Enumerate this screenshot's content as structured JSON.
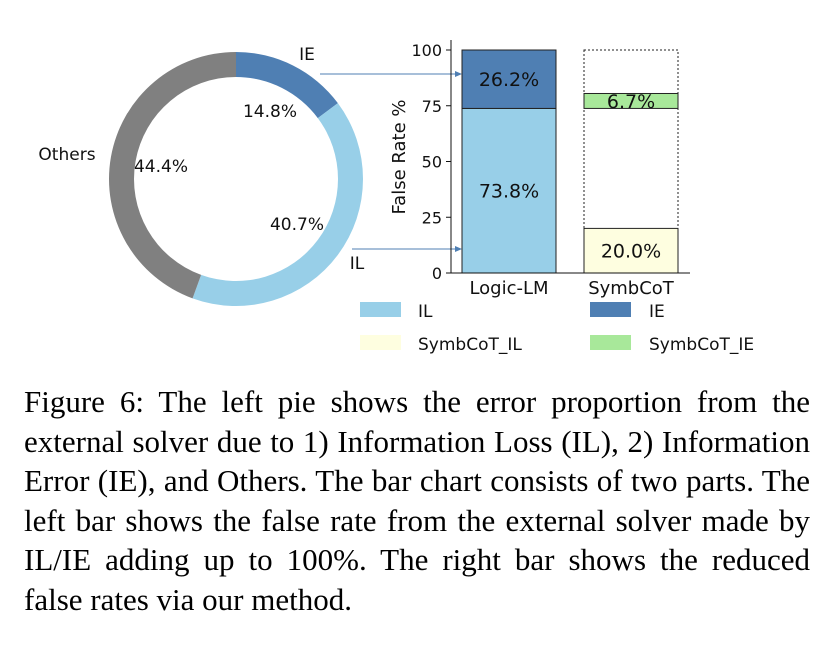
{
  "chart_data": [
    {
      "type": "pie",
      "donut": true,
      "slices": [
        {
          "name": "IE",
          "label": "IE",
          "value": 14.8,
          "pct_label": "14.8%",
          "color": "#4f7fb3"
        },
        {
          "name": "IL",
          "label": "IL",
          "value": 40.7,
          "pct_label": "40.7%",
          "color": "#98cfe8"
        },
        {
          "name": "Others",
          "label": "Others",
          "value": 44.4,
          "pct_label": "44.4%",
          "color": "#808080"
        }
      ]
    },
    {
      "type": "bar",
      "stacked": true,
      "ylabel": "False Rate %",
      "ylim": [
        0,
        100
      ],
      "yticks": [
        0,
        25,
        50,
        75,
        100
      ],
      "categories": [
        "Logic-LM",
        "SymbCoT"
      ],
      "bars": [
        {
          "category": "Logic-LM",
          "segments": [
            {
              "series": "IL",
              "from": 0,
              "to": 73.8,
              "label": "73.8%"
            },
            {
              "series": "IE",
              "from": 73.8,
              "to": 100,
              "label": "26.2%"
            }
          ]
        },
        {
          "category": "SymbCoT",
          "outline_total": 100,
          "segments": [
            {
              "series": "SymbCoT_IL",
              "from": 0,
              "to": 20.0,
              "label": "20.0%"
            },
            {
              "series": "SymbCoT_IE",
              "from": 73.8,
              "to": 80.5,
              "label": "6.7%"
            }
          ]
        }
      ],
      "legend": [
        {
          "name": "IL",
          "color": "#98cfe8"
        },
        {
          "name": "IE",
          "color": "#4f7fb3"
        },
        {
          "name": "SymbCoT_IL",
          "color": "#fefee0"
        },
        {
          "name": "SymbCoT_IE",
          "color": "#a8e89a"
        }
      ]
    }
  ],
  "caption": "Figure 6: The left pie shows the error proportion from the external solver due to 1) Information Loss (IL), 2) Information Error (IE), and Others. The bar chart consists of two parts. The left bar shows the false rate from the external solver made by IL/IE adding up to 100%. The right bar shows the reduced false rates via our method."
}
